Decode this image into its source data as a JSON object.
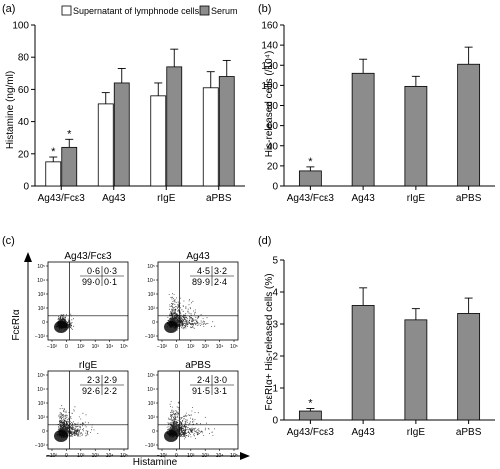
{
  "panels": [
    "(a)",
    "(b)",
    "(c)",
    "(d)"
  ],
  "colors": {
    "grey_bar": "#8c8c8c",
    "white_bar": "#ffffff",
    "axis": "#000000"
  },
  "chart_data": [
    {
      "type": "bar",
      "panel": "(a)",
      "categories": [
        "Ag43/Fcε3",
        "Ag43",
        "rIgE",
        "aPBS"
      ],
      "series": [
        {
          "name": "Supernatant of lymphnode cells",
          "values": [
            15,
            51,
            56,
            61
          ],
          "errors": [
            3,
            7,
            8,
            10
          ],
          "color": "#ffffff"
        },
        {
          "name": "Serum",
          "values": [
            24,
            64,
            74,
            68
          ],
          "errors": [
            5,
            9,
            11,
            10
          ],
          "color": "#8c8c8c"
        }
      ],
      "significance": [
        {
          "category": 0,
          "series": 0,
          "mark": "*"
        },
        {
          "category": 0,
          "series": 1,
          "mark": "*"
        }
      ],
      "ylabel": "Histamine (ng/ml)",
      "ylim": [
        0,
        100
      ],
      "yticks": [
        "0",
        "20",
        "40",
        "60",
        "80",
        "100"
      ],
      "legend_position": "top"
    },
    {
      "type": "bar",
      "panel": "(b)",
      "categories": [
        "Ag43/Fcε3",
        "Ag43",
        "rIgE",
        "aPBS"
      ],
      "values": [
        15,
        112,
        99,
        121
      ],
      "errors": [
        4,
        14,
        10,
        17
      ],
      "significance": [
        {
          "category": 0,
          "mark": "*"
        }
      ],
      "ylabel": "His-released cells (/10⁴)",
      "ylim": [
        0,
        160
      ],
      "yticks": [
        "0",
        "20",
        "40",
        "60",
        "80",
        "100",
        "120",
        "140",
        "160"
      ]
    },
    {
      "type": "scatter",
      "panel": "(c)",
      "ylabel": "FcεRIα",
      "xlabel": "Histamine",
      "plots": [
        {
          "title": "Ag43/Fcε3",
          "quadrants": [
            "0·6",
            "0·3",
            "99·0",
            "0·1"
          ]
        },
        {
          "title": "Ag43",
          "quadrants": [
            "4·5",
            "3·2",
            "89·9",
            "2·4"
          ]
        },
        {
          "title": "rIgE",
          "quadrants": [
            "2·3",
            "2·9",
            "92·6",
            "2·2"
          ]
        },
        {
          "title": "aPBS",
          "quadrants": [
            "2·4",
            "3·0",
            "91·5",
            "3·1"
          ]
        }
      ],
      "axis_ticks": {
        "y": [
          "10⁵",
          "10⁴",
          "10³",
          "10²",
          "0",
          "−10²"
        ],
        "x": [
          "−10²",
          "0",
          "10²",
          "10³",
          "10⁴",
          "10⁵"
        ]
      }
    },
    {
      "type": "bar",
      "panel": "(d)",
      "categories": [
        "Ag43/Fcε3",
        "Ag43",
        "rIgE",
        "aPBS"
      ],
      "values": [
        0.28,
        3.58,
        3.13,
        3.33
      ],
      "errors": [
        0.08,
        0.55,
        0.35,
        0.48
      ],
      "significance": [
        {
          "category": 0,
          "mark": "*"
        }
      ],
      "ylabel": "FcεRIα+ His-released cells (%)",
      "ylim": [
        0,
        5
      ],
      "yticks": [
        "0",
        "1",
        "2",
        "3",
        "4",
        "5"
      ]
    }
  ]
}
